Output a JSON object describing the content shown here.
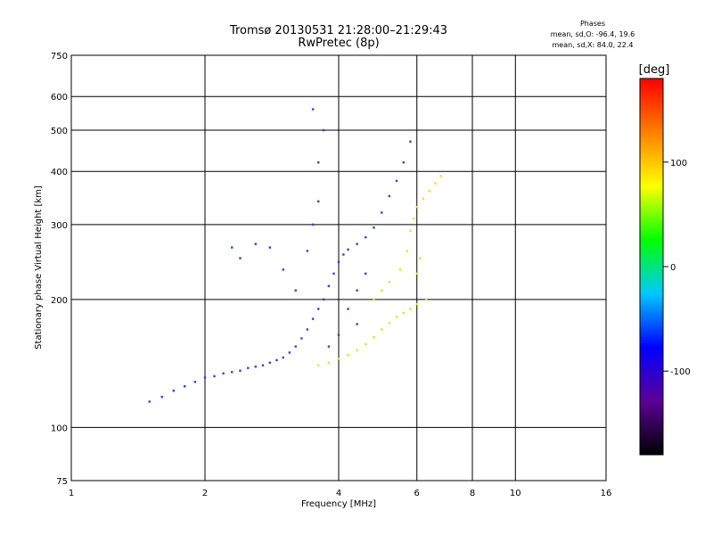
{
  "chart_data": {
    "type": "scatter",
    "title": "Tromsø 20130531 21:28:00–21:29:43",
    "subtitle": "RwPretec (8p)",
    "stats": {
      "heading": "Phases",
      "line_o": "mean, sd,O: -96.4, 19.6",
      "line_x": "mean, sd,X: 84.0, 22.4"
    },
    "xlabel": "Frequency [MHz]",
    "ylabel": "Stationary phase Virtual Height [km]",
    "xscale": "log",
    "yscale": "log",
    "xlim": [
      1,
      16
    ],
    "ylim": [
      75,
      750
    ],
    "xticks": [
      1,
      2,
      4,
      6,
      8,
      10,
      16
    ],
    "xtick_labels": [
      "1",
      "2",
      "4",
      "6",
      "8",
      "10",
      "16"
    ],
    "yticks": [
      75,
      100,
      200,
      300,
      400,
      500,
      600,
      750
    ],
    "ytick_labels": [
      "75",
      "100",
      "200",
      "300",
      "400",
      "500",
      "600",
      "750"
    ],
    "grid": true,
    "colorbar": {
      "label": "[deg]",
      "range": [
        -180,
        180
      ],
      "ticks": [
        100,
        0,
        -100
      ],
      "tick_labels": [
        "100",
        "0",
        "-100"
      ],
      "colormap": [
        "#000000",
        "#5b0096",
        "#0000ff",
        "#00c8ff",
        "#00ff00",
        "#ffff00",
        "#ff8000",
        "#ff0000"
      ]
    },
    "series": [
      {
        "color": "#2244ff",
        "mean_phase": -96.4,
        "points": [
          [
            1.5,
            115
          ],
          [
            1.6,
            118
          ],
          [
            1.7,
            122
          ],
          [
            1.8,
            125
          ],
          [
            1.9,
            128
          ],
          [
            2.0,
            131
          ],
          [
            2.1,
            132
          ],
          [
            2.2,
            134
          ],
          [
            2.3,
            135
          ],
          [
            2.4,
            136
          ],
          [
            2.5,
            138
          ],
          [
            2.6,
            139
          ],
          [
            2.7,
            140
          ],
          [
            2.8,
            142
          ],
          [
            2.9,
            144
          ],
          [
            3.0,
            146
          ],
          [
            3.1,
            150
          ],
          [
            3.2,
            155
          ],
          [
            3.3,
            162
          ],
          [
            3.4,
            170
          ],
          [
            3.5,
            180
          ],
          [
            3.6,
            190
          ],
          [
            3.7,
            200
          ],
          [
            3.8,
            215
          ],
          [
            3.9,
            230
          ],
          [
            4.0,
            245
          ],
          [
            4.1,
            255
          ],
          [
            4.2,
            262
          ],
          [
            4.4,
            270
          ],
          [
            4.6,
            280
          ],
          [
            4.8,
            295
          ],
          [
            5.0,
            320
          ],
          [
            5.2,
            350
          ],
          [
            5.4,
            380
          ],
          [
            5.6,
            420
          ],
          [
            5.8,
            470
          ],
          [
            3.4,
            260
          ],
          [
            3.5,
            300
          ],
          [
            3.6,
            340
          ],
          [
            3.6,
            420
          ],
          [
            3.7,
            500
          ],
          [
            3.5,
            560
          ],
          [
            2.3,
            265
          ],
          [
            2.4,
            250
          ],
          [
            2.6,
            270
          ],
          [
            2.8,
            265
          ],
          [
            3.0,
            235
          ],
          [
            3.2,
            210
          ],
          [
            4.2,
            190
          ],
          [
            4.4,
            210
          ],
          [
            4.6,
            230
          ],
          [
            4.4,
            175
          ],
          [
            4.0,
            165
          ],
          [
            3.8,
            155
          ]
        ]
      },
      {
        "color": "#d8f000",
        "mean_phase": 84.0,
        "points": [
          [
            3.6,
            140
          ],
          [
            3.8,
            142
          ],
          [
            4.0,
            145
          ],
          [
            4.2,
            148
          ],
          [
            4.4,
            152
          ],
          [
            4.6,
            157
          ],
          [
            4.8,
            163
          ],
          [
            5.0,
            170
          ],
          [
            5.2,
            176
          ],
          [
            5.4,
            182
          ],
          [
            5.6,
            186
          ],
          [
            5.8,
            190
          ],
          [
            6.0,
            195
          ],
          [
            6.3,
            200
          ],
          [
            4.8,
            200
          ],
          [
            5.0,
            210
          ],
          [
            5.2,
            220
          ],
          [
            5.5,
            235
          ],
          [
            5.7,
            260
          ],
          [
            5.8,
            290
          ],
          [
            5.9,
            310
          ],
          [
            6.0,
            330
          ],
          [
            6.2,
            345
          ],
          [
            6.4,
            360
          ],
          [
            6.6,
            375
          ],
          [
            6.8,
            390
          ],
          [
            6.1,
            250
          ],
          [
            6.0,
            230
          ]
        ]
      }
    ]
  }
}
